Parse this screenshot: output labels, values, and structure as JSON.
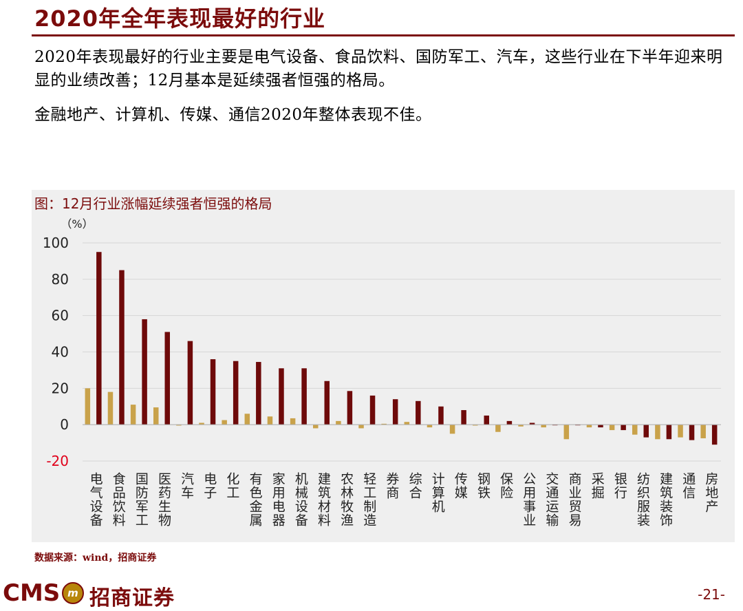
{
  "page": {
    "title": "2020年全年表现最好的行业",
    "paragraph1": "2020年表现最好的行业主要是电气设备、食品饮料、国防军工、汽车，这些行业在下半年迎来明显的业绩改善；12月基本是延续强者恒强的格局。",
    "paragraph2": "金融地产、计算机、传媒、通信2020年整体表现不佳。",
    "source": "数据来源：wind，招商证券",
    "page_number": "-21-"
  },
  "footer": {
    "logo_text": "CMS",
    "logo_emblem": "m",
    "logo_name": "招商证券"
  },
  "chart_data": {
    "type": "bar",
    "title": "图：12月行业涨幅延续强者恒强的格局",
    "ylabel": "（%）",
    "ylim": [
      -20,
      100
    ],
    "yticks": [
      100,
      80,
      60,
      40,
      20,
      0,
      -20
    ],
    "grid": true,
    "legend": "none",
    "categories": [
      "电气设备",
      "食品饮料",
      "国防军工",
      "医药生物",
      "汽车",
      "电子",
      "化工",
      "有色金属",
      "家用电器",
      "机械设备",
      "建筑材料",
      "农林牧渔",
      "轻工制造",
      "券商",
      "综合",
      "计算机",
      "传媒",
      "钢铁",
      "保险",
      "公用事业",
      "交通运输",
      "商业贸易",
      "采掘",
      "银行",
      "纺织服装",
      "建筑装饰",
      "通信",
      "房地产"
    ],
    "series": [
      {
        "color": "#c9a24a",
        "values": [
          20,
          18,
          11,
          9.5,
          -0.5,
          1,
          2.5,
          6,
          4.5,
          3.5,
          -2,
          2,
          -2,
          0.5,
          1.5,
          -1.5,
          -5,
          -0.5,
          -4,
          -1,
          -1.5,
          -8,
          -1.5,
          -3,
          -5.5,
          -8,
          -7,
          -7.5
        ]
      },
      {
        "color": "#6e0a0a",
        "values": [
          95,
          85,
          58,
          51,
          46,
          36,
          35,
          34.5,
          31,
          31,
          24,
          18.5,
          16,
          14,
          13,
          10,
          8,
          5,
          2,
          1,
          0,
          0,
          -1.5,
          -3,
          -7,
          -8,
          -8.5,
          -11
        ]
      }
    ]
  }
}
